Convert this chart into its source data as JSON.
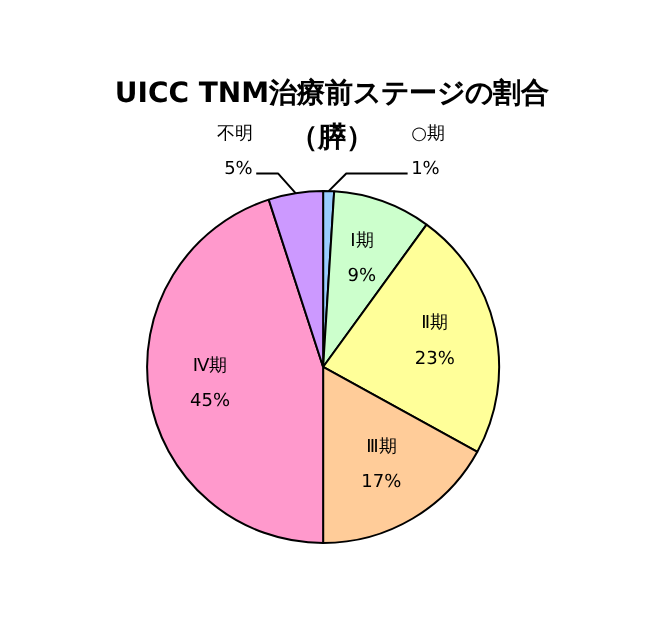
{
  "chart_data": {
    "type": "pie",
    "title": "UICC TNM治療前ステージの割合",
    "subtitle": "（膵）",
    "categories": [
      "○期",
      "Ⅰ期",
      "Ⅱ期",
      "Ⅲ期",
      "Ⅳ期",
      "不明"
    ],
    "values": [
      1,
      9,
      23,
      17,
      45,
      5
    ],
    "colors": [
      "#99ccff",
      "#ccffcc",
      "#ffff99",
      "#ffcc99",
      "#ff99cc",
      "#cc99ff"
    ],
    "value_labels": [
      "1%",
      "9%",
      "23%",
      "17%",
      "45%",
      "5%"
    ]
  }
}
